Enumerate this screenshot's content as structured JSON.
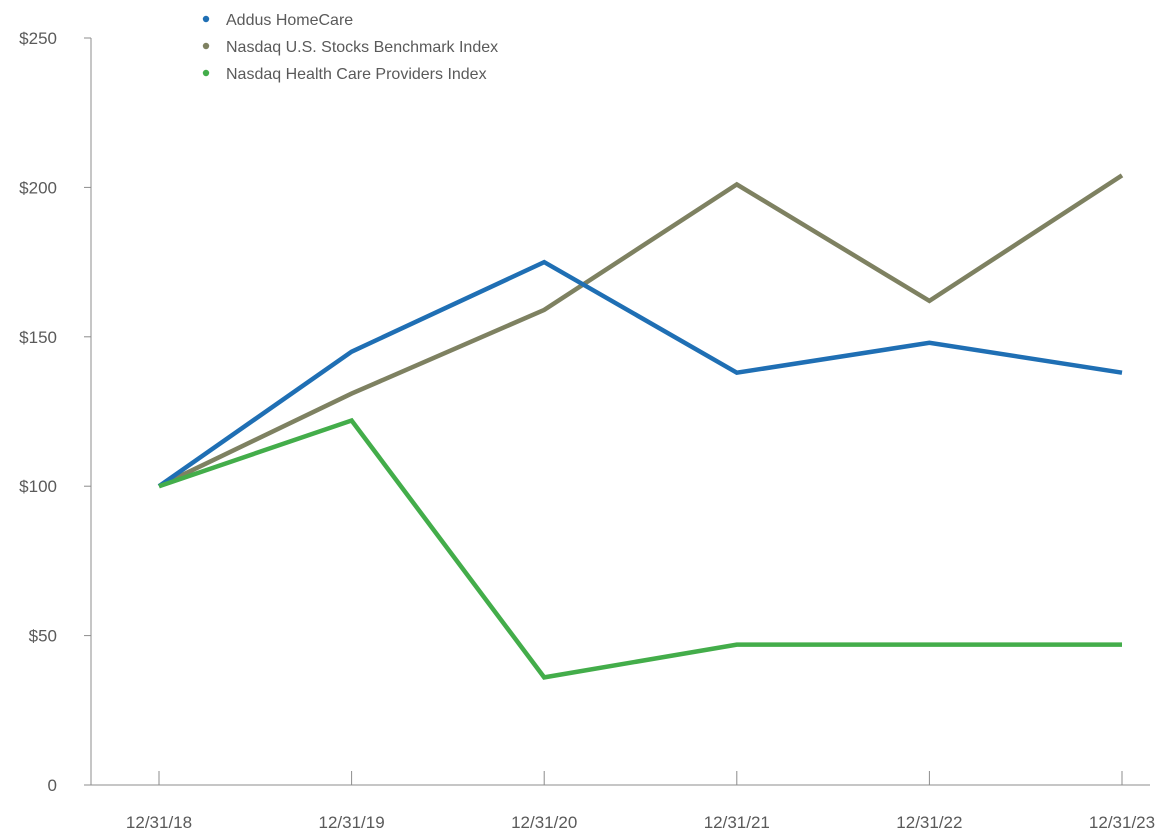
{
  "chart_data": {
    "type": "line",
    "categories": [
      "12/31/18",
      "12/31/19",
      "12/31/20",
      "12/31/21",
      "12/31/22",
      "12/31/23"
    ],
    "series": [
      {
        "name": "Addus HomeCare",
        "color": "#1f6fb4",
        "values": [
          100,
          145,
          175,
          138,
          148,
          138
        ]
      },
      {
        "name": "Nasdaq U.S. Stocks Benchmark Index",
        "color": "#7e8161",
        "values": [
          100,
          131,
          159,
          201,
          162,
          204
        ]
      },
      {
        "name": "Nasdaq Health Care Providers Index",
        "color": "#43ad4a",
        "values": [
          100,
          122,
          36,
          47,
          47,
          47
        ]
      }
    ],
    "y_ticks": [
      0,
      50,
      100,
      150,
      200,
      250
    ],
    "y_tick_labels": [
      "0",
      "$50",
      "$100",
      "$150",
      "$200",
      "$250"
    ],
    "ylim": [
      0,
      250
    ],
    "legend_position": "top-left",
    "grid": false
  }
}
